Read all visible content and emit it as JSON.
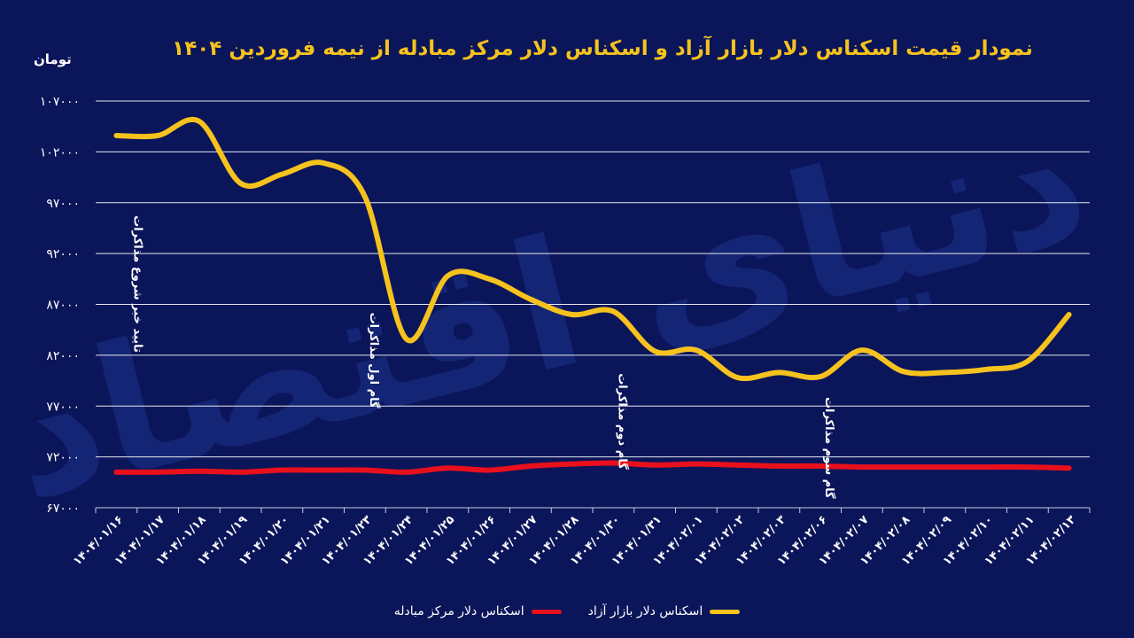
{
  "chart_data": {
    "type": "line",
    "title": "نمودار قیمت اسکناس دلار بازار آزاد و اسکناس دلار مرکز مبادله از نیمه فروردین ۱۴۰۴",
    "ylabel": "تومان",
    "ylim": [
      67000,
      107000
    ],
    "yticks": [
      67000,
      72000,
      77000,
      82000,
      87000,
      92000,
      97000,
      102000,
      107000
    ],
    "ytick_labels": [
      "۶۷۰۰۰",
      "۷۲۰۰۰",
      "۷۷۰۰۰",
      "۸۲۰۰۰",
      "۸۷۰۰۰",
      "۹۲۰۰۰",
      "۹۷۰۰۰",
      "۱۰۲۰۰۰",
      "۱۰۷۰۰۰"
    ],
    "categories": [
      "۱۴۰۴/۰۱/۱۶",
      "۱۴۰۴/۰۱/۱۷",
      "۱۴۰۴/۰۱/۱۸",
      "۱۴۰۴/۰۱/۱۹",
      "۱۴۰۴/۰۱/۲۰",
      "۱۴۰۴/۰۱/۲۱",
      "۱۴۰۴/۰۱/۲۳",
      "۱۴۰۴/۰۱/۲۴",
      "۱۴۰۴/۰۱/۲۵",
      "۱۴۰۴/۰۱/۲۶",
      "۱۴۰۴/۰۱/۲۷",
      "۱۴۰۴/۰۱/۲۸",
      "۱۴۰۴/۰۱/۳۰",
      "۱۴۰۴/۰۱/۳۱",
      "۱۴۰۴/۰۲/۰۱",
      "۱۴۰۴/۰۲/۰۲",
      "۱۴۰۴/۰۲/۰۳",
      "۱۴۰۴/۰۲/۰۶",
      "۱۴۰۴/۰۲/۰۷",
      "۱۴۰۴/۰۲/۰۸",
      "۱۴۰۴/۰۲/۰۹",
      "۱۴۰۴/۰۲/۱۰",
      "۱۴۰۴/۰۲/۱۱",
      "۱۴۰۴/۰۲/۱۳"
    ],
    "series": [
      {
        "name": "اسکناس دلار بازار آزاد",
        "color": "#f6c21d",
        "values": [
          103600,
          103600,
          105000,
          98900,
          99800,
          100900,
          97600,
          83600,
          89800,
          89500,
          87500,
          86000,
          86300,
          82400,
          82500,
          79800,
          80300,
          79900,
          82500,
          80400,
          80300,
          80600,
          81400,
          86000
        ]
      },
      {
        "name": "اسکناس دلار مرکز مبادله",
        "color": "#e8101c",
        "values": [
          70500,
          70500,
          70600,
          70500,
          70700,
          70700,
          70700,
          70500,
          70900,
          70700,
          71100,
          71300,
          71400,
          71200,
          71300,
          71200,
          71100,
          71100,
          71000,
          71000,
          71000,
          71000,
          71000,
          70900
        ]
      }
    ],
    "annotations": [
      {
        "text": "تایید خبر شروع مذاکرات",
        "category_index": 0,
        "value": 89000
      },
      {
        "text": "گام اول مذاکرات",
        "category_index": 6,
        "value": 81500
      },
      {
        "text": "گام دوم مذاکرات",
        "category_index": 12,
        "value": 75500
      },
      {
        "text": "گام سوم مذاکرات",
        "category_index": 17,
        "value": 72900
      }
    ],
    "watermark": "دنیای اقتصاد",
    "legend": "bottom-center"
  }
}
